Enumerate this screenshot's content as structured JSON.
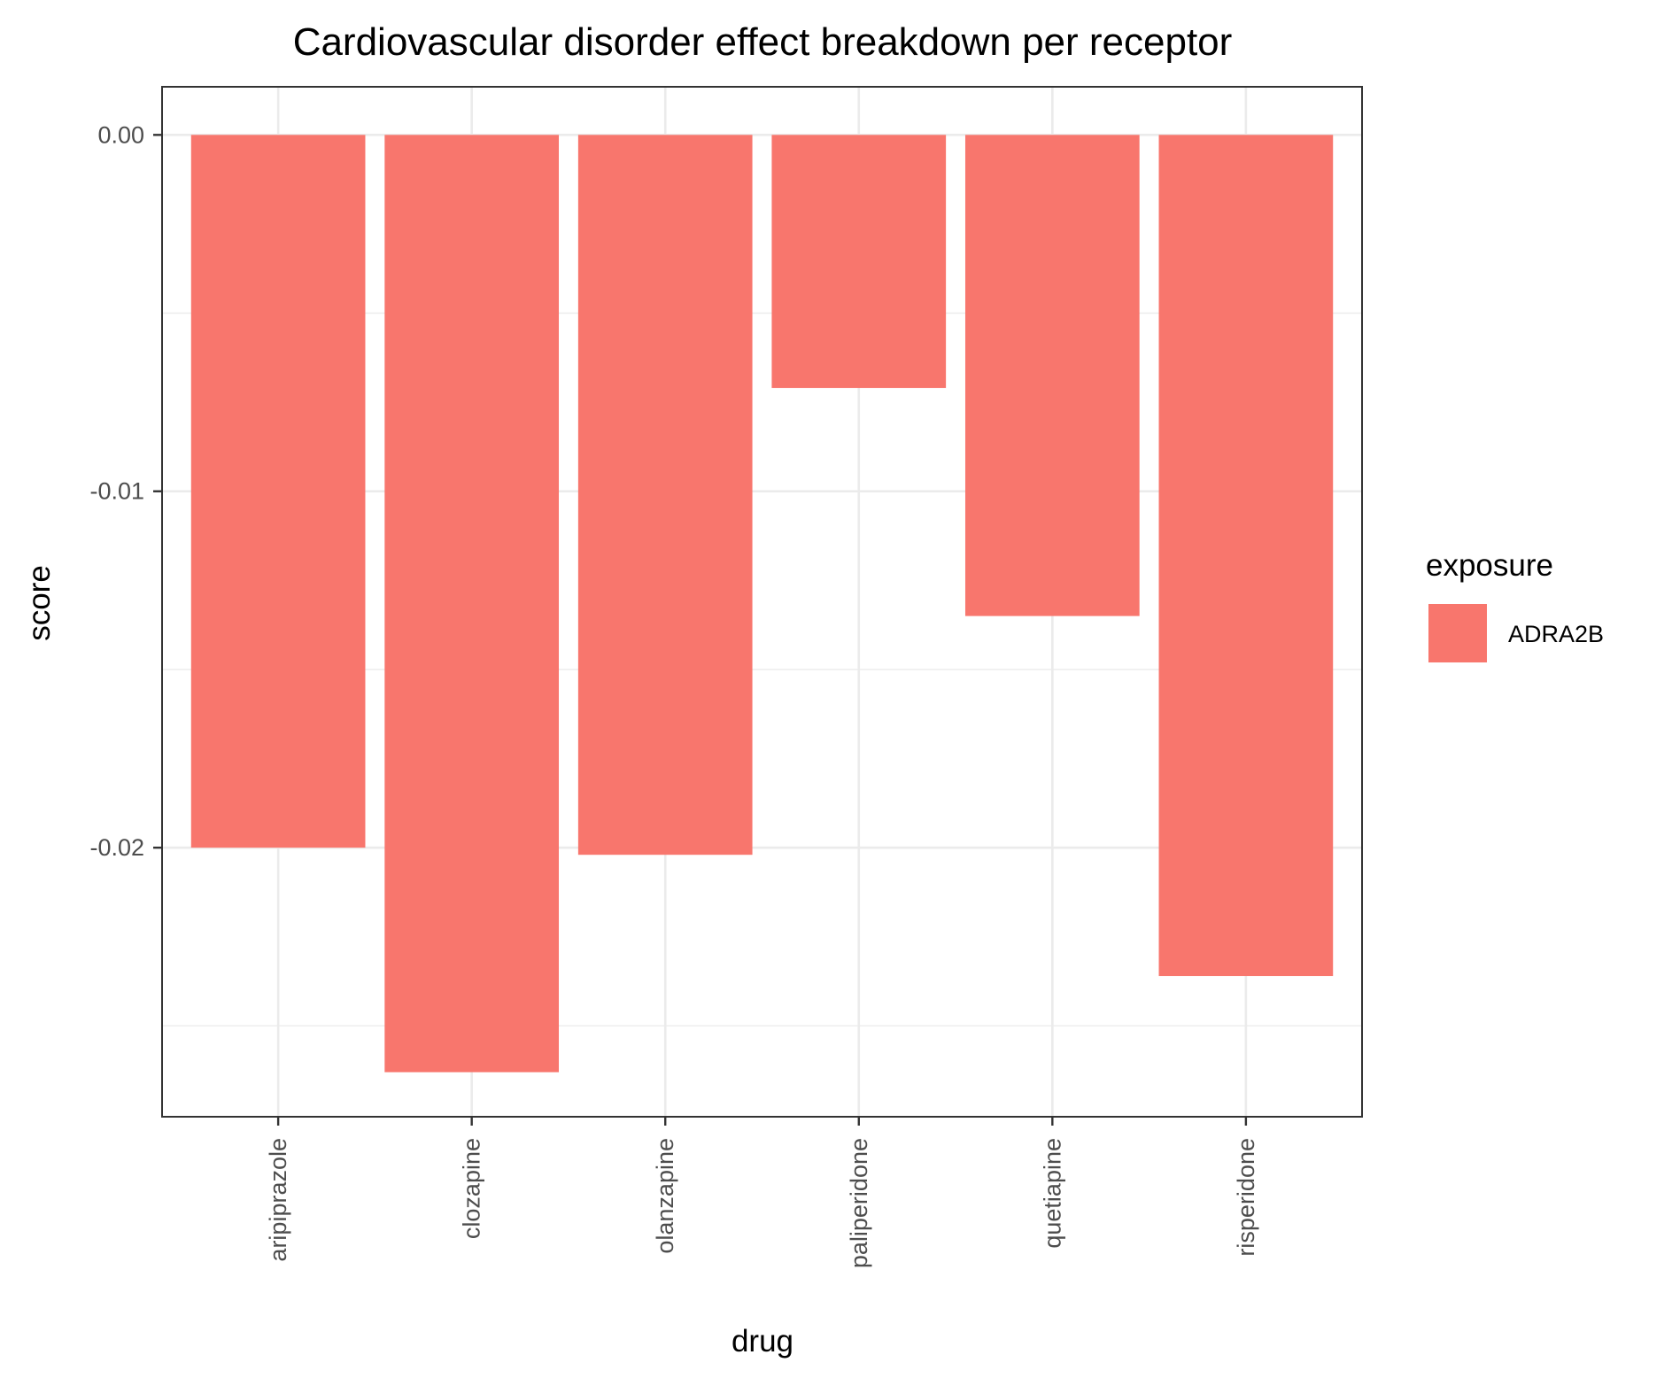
{
  "chart_data": {
    "type": "bar",
    "title": "Cardiovascular disorder effect breakdown per receptor",
    "xlabel": "drug",
    "ylabel": "score",
    "categories": [
      "aripiprazole",
      "clozapine",
      "olanzapine",
      "paliperidone",
      "quetiapine",
      "risperidone"
    ],
    "series": [
      {
        "name": "ADRA2B",
        "color": "#F8766D",
        "values": [
          -0.02,
          -0.0263,
          -0.0202,
          -0.0071,
          -0.0135,
          -0.0236
        ]
      }
    ],
    "yticks": [
      0.0,
      -0.01,
      -0.02
    ],
    "ytick_labels": [
      "0.00",
      "-0.01",
      "-0.02"
    ],
    "ylim": [
      -0.02755,
      0.00135
    ],
    "grid": true,
    "legend": {
      "title": "exposure",
      "placement": "right",
      "entries": [
        "ADRA2B"
      ]
    }
  }
}
